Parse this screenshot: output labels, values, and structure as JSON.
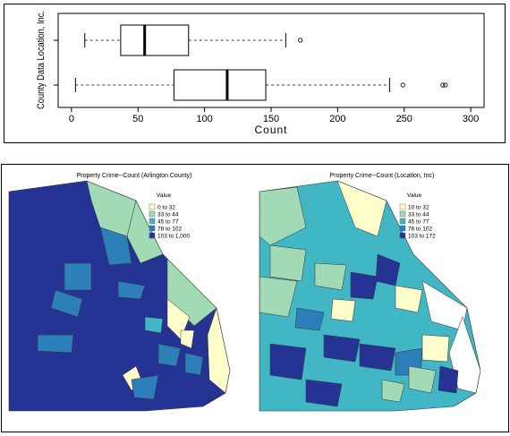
{
  "chart_data": [
    {
      "type": "boxplot",
      "orientation": "horizontal",
      "xlabel": "Count",
      "ylabel": "",
      "xlim": [
        -10,
        310
      ],
      "xticks": [
        0,
        50,
        100,
        150,
        200,
        250,
        300
      ],
      "categories": [
        "County Data",
        "Location, Inc."
      ],
      "boxes": [
        {
          "name": "County Data",
          "whisker_low": 3,
          "q1": 77,
          "median": 117,
          "q3": 146,
          "whisker_high": 239,
          "outliers": [
            249,
            279,
            281
          ]
        },
        {
          "name": "Location, Inc.",
          "whisker_low": 10,
          "q1": 37,
          "median": 55,
          "q3": 88,
          "whisker_high": 161,
          "outliers": [
            172
          ]
        }
      ],
      "grid": false,
      "legend": "none"
    },
    {
      "type": "choropleth",
      "title": "Property Crime--Count (Arlington County)",
      "legend_title": "Value",
      "legend_position": "top-right",
      "legend": [
        {
          "label": "0 to 32",
          "color": "#ffffcc"
        },
        {
          "label": "33 to 44",
          "color": "#a1dab4"
        },
        {
          "label": "45 to 77",
          "color": "#41b6c4"
        },
        {
          "label": "78 to 102",
          "color": "#2c7fb8"
        },
        {
          "label": "103 to 1,000",
          "color": "#253494"
        }
      ]
    },
    {
      "type": "choropleth",
      "title": "Property Crime--Count (Location, Inc)",
      "legend_title": "Value",
      "legend_position": "top-right",
      "legend": [
        {
          "label": "10 to 32",
          "color": "#ffffcc"
        },
        {
          "label": "33 to 44",
          "color": "#a1dab4"
        },
        {
          "label": "45 to 77",
          "color": "#41b6c4"
        },
        {
          "label": "78 to 102",
          "color": "#2c7fb8"
        },
        {
          "label": "103 to 172",
          "color": "#253494"
        }
      ]
    }
  ]
}
